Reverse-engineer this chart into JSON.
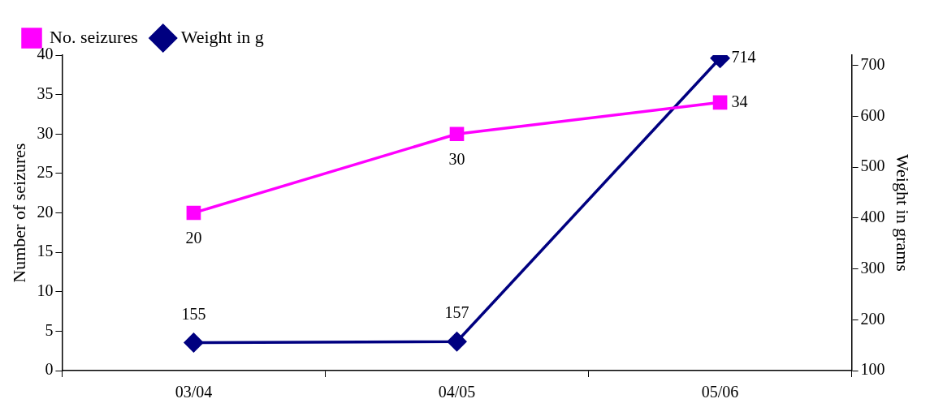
{
  "chart_data": {
    "type": "line",
    "categories": [
      "03/04",
      "04/05",
      "05/06"
    ],
    "series": [
      {
        "name": "No. seizures",
        "color": "#ff00ff",
        "values": [
          20,
          30,
          34
        ],
        "marker": "square"
      },
      {
        "name": "Weight in g",
        "color": "#000080",
        "values": [
          155,
          157,
          714
        ],
        "marker": "diamond",
        "axis": "y2"
      }
    ],
    "ylabel": "Number of seizures",
    "y2label": "Weight in grams",
    "ylim": [
      0,
      40
    ],
    "yticks": [
      0,
      5,
      10,
      15,
      20,
      25,
      30,
      35,
      40
    ],
    "y2lim": [
      100,
      720
    ],
    "y2ticks": [
      100,
      200,
      300,
      400,
      500,
      600,
      700
    ],
    "data_labels": true,
    "legend": "top left",
    "line_style": "solid"
  }
}
